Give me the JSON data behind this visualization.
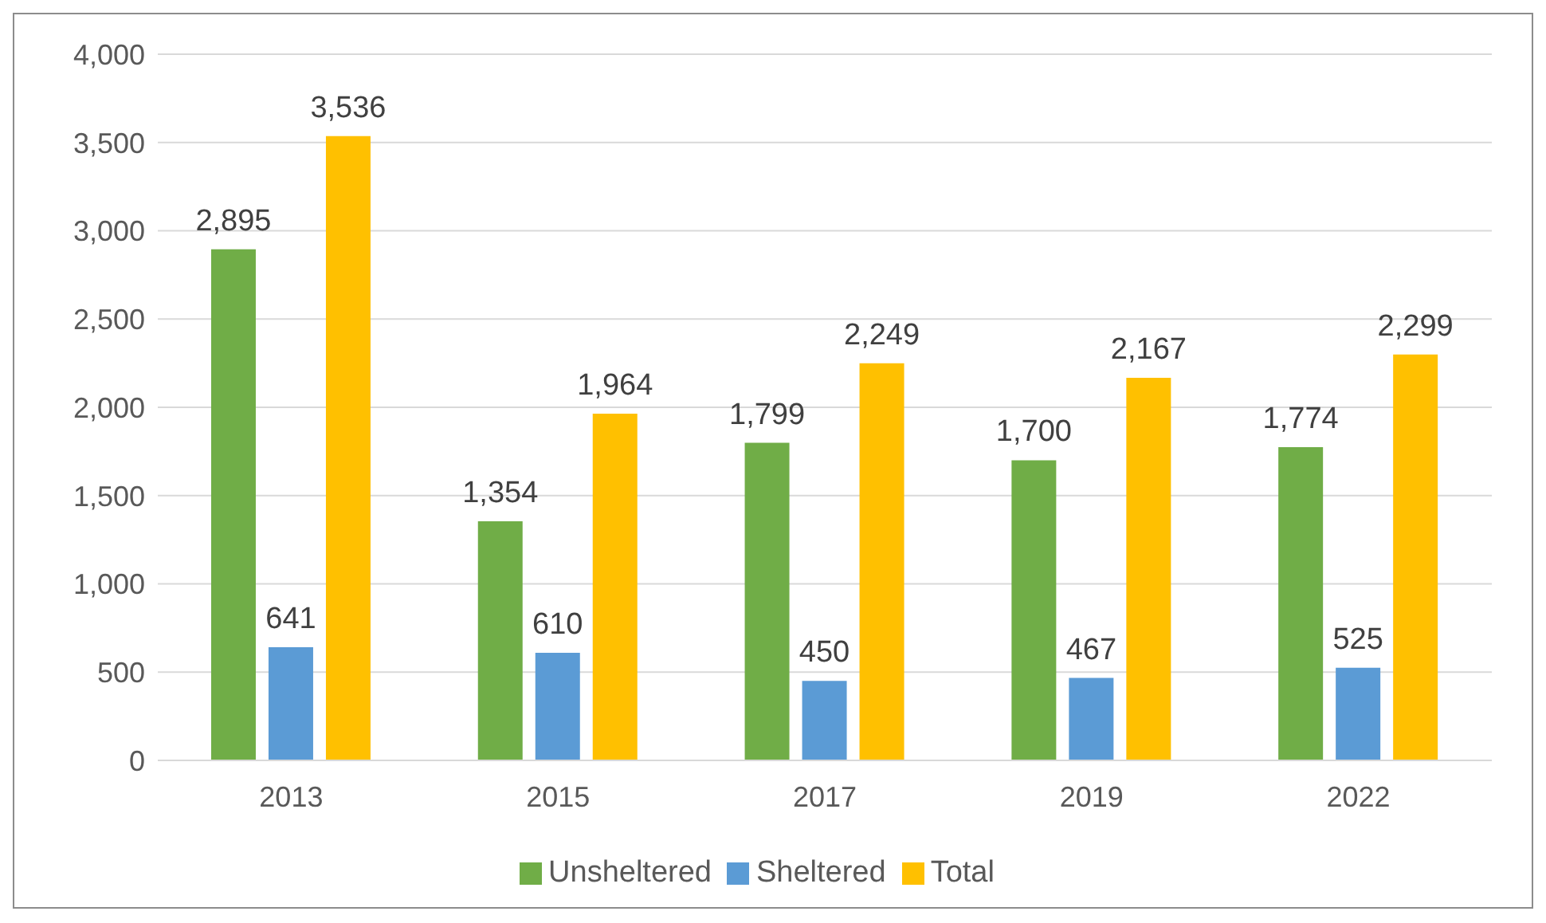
{
  "chart_data": {
    "type": "bar",
    "categories": [
      "2013",
      "2015",
      "2017",
      "2019",
      "2022"
    ],
    "series": [
      {
        "name": "Unsheltered",
        "color": "#70ad47",
        "values": [
          2895,
          1354,
          1799,
          1700,
          1774
        ],
        "value_labels": [
          "2,895",
          "1,354",
          "1,799",
          "1,700",
          "1,774"
        ]
      },
      {
        "name": "Sheltered",
        "color": "#5b9bd5",
        "values": [
          641,
          610,
          450,
          467,
          525
        ],
        "value_labels": [
          "641",
          "610",
          "450",
          "467",
          "525"
        ]
      },
      {
        "name": "Total",
        "color": "#ffc000",
        "values": [
          3536,
          1964,
          2249,
          2167,
          2299
        ],
        "value_labels": [
          "3,536",
          "1,964",
          "2,249",
          "2,167",
          "2,299"
        ]
      }
    ],
    "ylim": [
      0,
      4000
    ],
    "yticks": [
      {
        "value": 0,
        "label": "0"
      },
      {
        "value": 500,
        "label": "500"
      },
      {
        "value": 1000,
        "label": "1,000"
      },
      {
        "value": 1500,
        "label": "1,500"
      },
      {
        "value": 2000,
        "label": "2,000"
      },
      {
        "value": 2500,
        "label": "2,500"
      },
      {
        "value": 3000,
        "label": "3,000"
      },
      {
        "value": 3500,
        "label": "3,500"
      },
      {
        "value": 4000,
        "label": "4,000"
      }
    ],
    "grid": "y",
    "legend": "bottom"
  }
}
